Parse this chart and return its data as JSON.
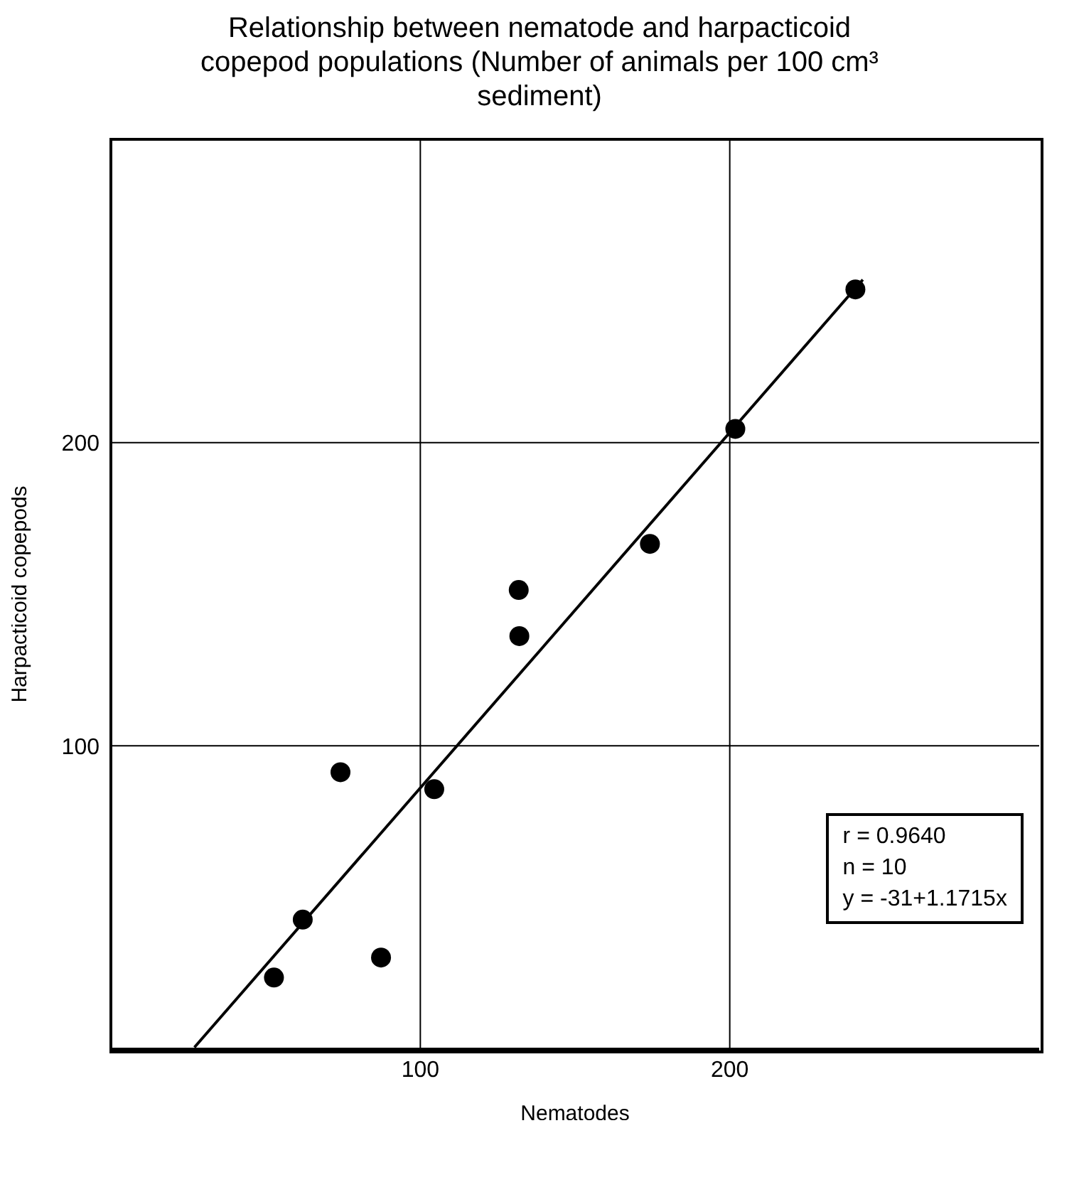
{
  "chart_data": {
    "type": "scatter",
    "title": "Relationship between nematode and harpacticoid copepod populations (Number of animals per 100 cm³ sediment)",
    "xlabel": "Nematodes",
    "ylabel": "Harpacticoid copepods",
    "series": [
      {
        "color": "#000000",
        "marker": "circle",
        "x": [
          52.7,
          62,
          74.2,
          87.3,
          104.5,
          131.8,
          132,
          174.2,
          201.8,
          240.6
        ],
        "values": [
          23.6,
          42.7,
          91.3,
          30.2,
          85.7,
          151.4,
          136.2,
          166.6,
          204.5,
          250.5
        ]
      },
      {
        "type": "line",
        "color": "#000000",
        "x": [
          27,
          243
        ],
        "values": [
          0.6,
          253.7
        ]
      }
    ],
    "xlim": [
      0,
      300
    ],
    "ylim": [
      0,
      300
    ],
    "xticks": [
      100,
      200
    ],
    "yticks": [
      100,
      200
    ],
    "grid": true,
    "annotations": [
      "r = 0.9640",
      "n = 10",
      "y = -31+1.1715x"
    ]
  }
}
